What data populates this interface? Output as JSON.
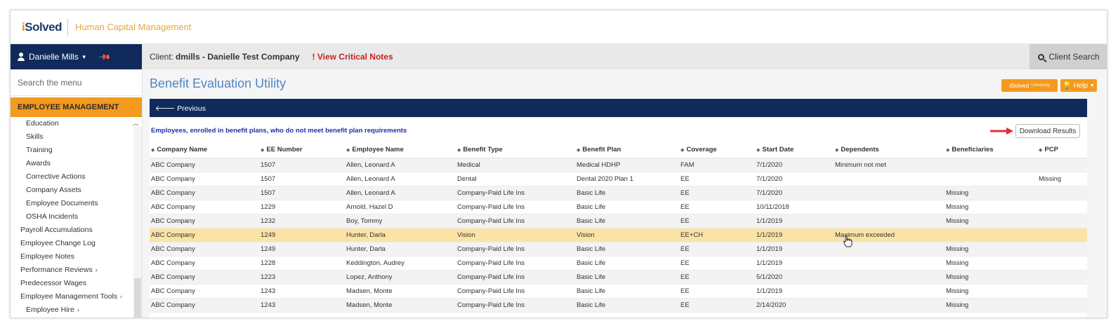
{
  "brand": {
    "logo_i": "i",
    "logo_rest": "Solved",
    "title": "Human Capital Management"
  },
  "sidebar": {
    "user_name": "Danielle Mills",
    "search_placeholder": "Search the menu",
    "section": "EMPLOYEE MANAGEMENT",
    "items": [
      {
        "label": "Education",
        "level": "sub"
      },
      {
        "label": "Skills",
        "level": "sub"
      },
      {
        "label": "Training",
        "level": "sub"
      },
      {
        "label": "Awards",
        "level": "sub"
      },
      {
        "label": "Corrective Actions",
        "level": "sub"
      },
      {
        "label": "Company Assets",
        "level": "sub"
      },
      {
        "label": "Employee Documents",
        "level": "sub"
      },
      {
        "label": "OSHA Incidents",
        "level": "sub"
      },
      {
        "label": "Payroll Accumulations",
        "level": "top"
      },
      {
        "label": "Employee Change Log",
        "level": "top"
      },
      {
        "label": "Employee Notes",
        "level": "top"
      },
      {
        "label": "Performance Reviews",
        "level": "top",
        "chevron": "›"
      },
      {
        "label": "Predecessor Wages",
        "level": "top"
      },
      {
        "label": "Employee Management Tools",
        "level": "top",
        "chevron": "‹"
      },
      {
        "label": "Employee Hire",
        "level": "sub",
        "chevron": "›"
      }
    ]
  },
  "clientbar": {
    "label": "Client:",
    "name": "dmills - Danielle Test Company",
    "critical": "! View Critical Notes",
    "search": "Client Search"
  },
  "main": {
    "title": "Benefit Evaluation Utility",
    "univ_button": "iSolved",
    "univ_sub": "University",
    "help_button": "Help",
    "previous": "Previous",
    "subtitle": "Employees, enrolled in benefit plans, who do not meet benefit plan requirements",
    "download": "Download Results"
  },
  "table": {
    "headers": [
      "Company Name",
      "EE Number",
      "Employee Name",
      "Benefit Type",
      "Benefit Plan",
      "Coverage",
      "Start Date",
      "Dependents",
      "Beneficiaries",
      "PCP"
    ],
    "rows": [
      [
        "ABC Company",
        "1507",
        "Allen, Leonard A",
        "Medical",
        "Medical HDHP",
        "FAM",
        "7/1/2020",
        "Minimum not met",
        "",
        ""
      ],
      [
        "ABC Company",
        "1507",
        "Allen, Leonard A",
        "Dental",
        "Dental 2020 Plan 1",
        "EE",
        "7/1/2020",
        "",
        "",
        "Missing"
      ],
      [
        "ABC Company",
        "1507",
        "Allen, Leonard A",
        "Company-Paid Life Ins",
        "Basic Life",
        "EE",
        "7/1/2020",
        "",
        "Missing",
        ""
      ],
      [
        "ABC Company",
        "1229",
        "Arnold, Hazel D",
        "Company-Paid Life Ins",
        "Basic Life",
        "EE",
        "10/11/2018",
        "",
        "Missing",
        ""
      ],
      [
        "ABC Company",
        "1232",
        "Boy, Tommy",
        "Company-Paid Life Ins",
        "Basic Life",
        "EE",
        "1/1/2019",
        "",
        "Missing",
        ""
      ],
      [
        "ABC Company",
        "1249",
        "Hunter, Darla",
        "Vision",
        "Vision",
        "EE+CH",
        "1/1/2019",
        "Maximum exceeded",
        "",
        ""
      ],
      [
        "ABC Company",
        "1249",
        "Hunter, Darla",
        "Company-Paid Life Ins",
        "Basic Life",
        "EE",
        "1/1/2019",
        "",
        "Missing",
        ""
      ],
      [
        "ABC Company",
        "1228",
        "Keddington, Audrey",
        "Company-Paid Life Ins",
        "Basic Life",
        "EE",
        "1/1/2019",
        "",
        "Missing",
        ""
      ],
      [
        "ABC Company",
        "1223",
        "Lopez, Anthony",
        "Company-Paid Life Ins",
        "Basic Life",
        "EE",
        "5/1/2020",
        "",
        "Missing",
        ""
      ],
      [
        "ABC Company",
        "1243",
        "Madsen, Monte",
        "Company-Paid Life Ins",
        "Basic Life",
        "EE",
        "1/1/2019",
        "",
        "Missing",
        ""
      ],
      [
        "ABC Company",
        "1243",
        "Madsen, Monte",
        "Company-Paid Life Ins",
        "Basic Life",
        "EE",
        "2/14/2020",
        "",
        "Missing",
        ""
      ]
    ],
    "highlight_row": 5
  },
  "colors": {
    "navy": "#0f2a5b",
    "orange": "#f39a1f",
    "title_blue": "#4f86c6",
    "critical_red": "#cc1f1f",
    "highlight": "#fbe3a6"
  }
}
